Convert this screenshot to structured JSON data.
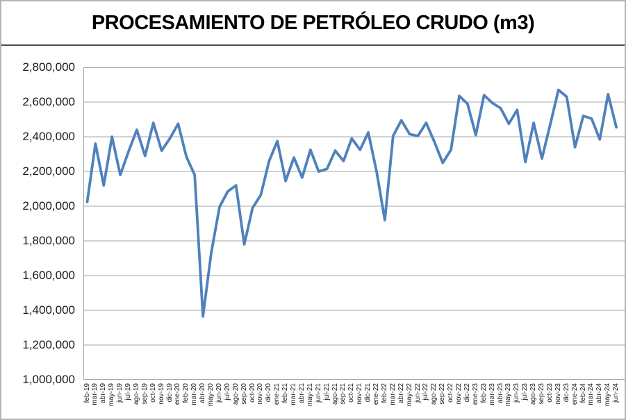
{
  "chart": {
    "title": "PROCESAMIENTO DE PETRÓLEO CRUDO (m3)"
  },
  "chart_data": {
    "type": "line",
    "title": "PROCESAMIENTO DE PETRÓLEO CRUDO (m3)",
    "xlabel": "",
    "ylabel": "",
    "ylim": [
      1000000,
      2800000
    ],
    "ytick_interval": 200000,
    "ytick_labels": [
      "2,800,000",
      "2,600,000",
      "2,400,000",
      "2,200,000",
      "2,000,000",
      "1,800,000",
      "1,600,000",
      "1,400,000",
      "1,200,000",
      "1,000,000"
    ],
    "grid": true,
    "legend_position": "none",
    "line_color": "#4F81BD",
    "categories": [
      "feb-19",
      "mar-19",
      "abr-19",
      "may-19",
      "jun-19",
      "jul-19",
      "ago-19",
      "sep-19",
      "oct-19",
      "nov-19",
      "dic-19",
      "ene-20",
      "feb-20",
      "mar-20",
      "abr-20",
      "may-20",
      "jun-20",
      "jul-20",
      "ago-20",
      "sep-20",
      "oct-20",
      "nov-20",
      "dic-20",
      "ene-21",
      "feb-21",
      "mar-21",
      "abr-21",
      "may-21",
      "jun-21",
      "jul-21",
      "ago-21",
      "sep-21",
      "oct-21",
      "nov-21",
      "dic-21",
      "ene-22",
      "feb-22",
      "mar-22",
      "abr-22",
      "may-22",
      "jun-22",
      "jul-22",
      "ago-22",
      "sep-22",
      "oct-22",
      "nov-22",
      "dic-22",
      "ene-23",
      "feb-23",
      "mar-23",
      "abr-23",
      "may-23",
      "jun-23",
      "jul-23",
      "ago-23",
      "sep-23",
      "oct-23",
      "nov-23",
      "dic-23",
      "ene-24",
      "feb-24",
      "mar-24",
      "abr-24",
      "may-24",
      "jun-24"
    ],
    "values": [
      2025000,
      2360000,
      2120000,
      2400000,
      2180000,
      2315000,
      2440000,
      2290000,
      2480000,
      2320000,
      2390000,
      2475000,
      2285000,
      2180000,
      1365000,
      1730000,
      1995000,
      2085000,
      2120000,
      1780000,
      1990000,
      2065000,
      2260000,
      2375000,
      2145000,
      2280000,
      2165000,
      2325000,
      2200000,
      2215000,
      2320000,
      2260000,
      2390000,
      2325000,
      2425000,
      2200000,
      1920000,
      2405000,
      2495000,
      2415000,
      2405000,
      2480000,
      2370000,
      2250000,
      2325000,
      2635000,
      2590000,
      2410000,
      2640000,
      2595000,
      2565000,
      2475000,
      2555000,
      2255000,
      2480000,
      2275000,
      2470000,
      2670000,
      2630000,
      2340000,
      2520000,
      2505000,
      2385000,
      2645000,
      2455000
    ]
  }
}
